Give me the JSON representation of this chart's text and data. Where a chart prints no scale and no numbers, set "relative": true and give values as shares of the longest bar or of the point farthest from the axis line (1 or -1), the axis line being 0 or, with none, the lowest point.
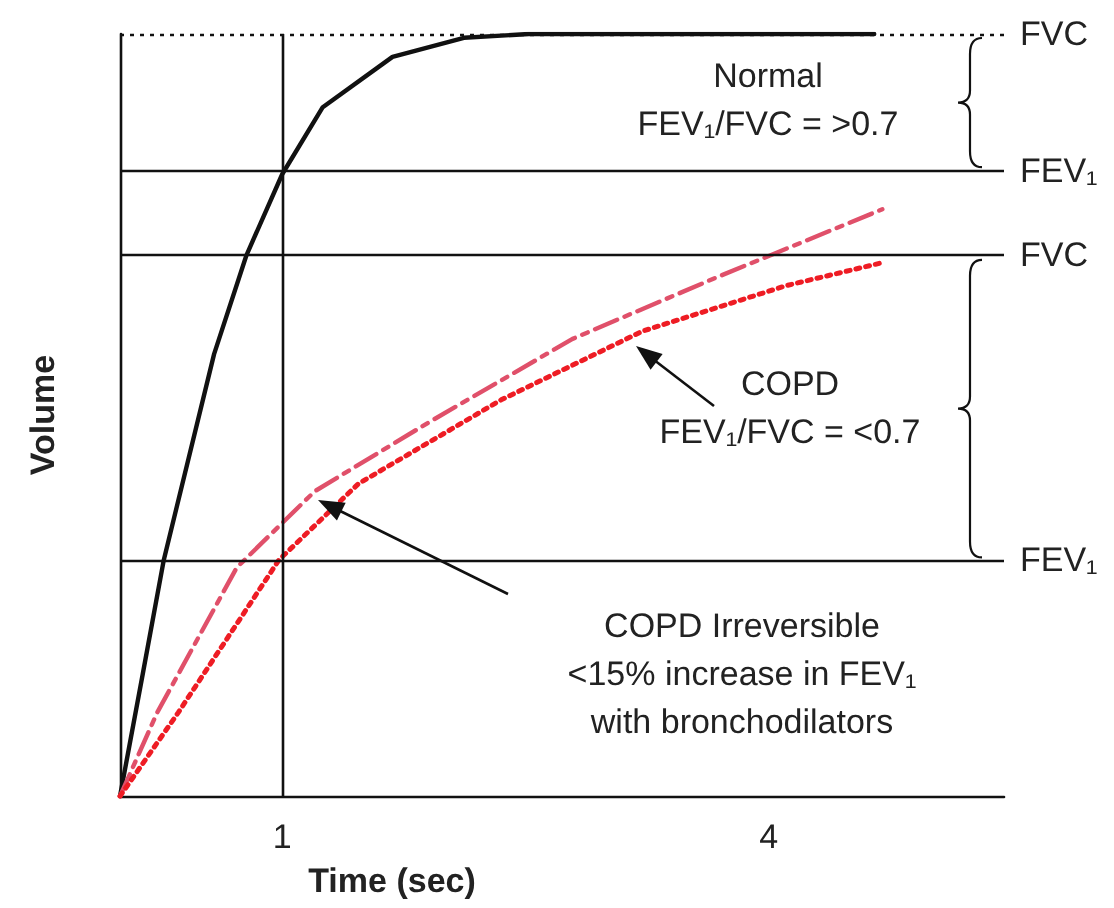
{
  "chart_data": {
    "type": "line",
    "xlabel": "Time (sec)",
    "ylabel": "Volume",
    "relative": true,
    "marker": "none",
    "x": [
      0,
      0.14,
      0.27,
      0.58,
      0.78,
      1.0,
      1.25,
      1.68,
      2.12,
      2.52,
      3.5,
      4.65
    ],
    "xlim": [
      0,
      5.45
    ],
    "xticks": [
      1,
      4
    ],
    "series": [
      {
        "color": "#111111",
        "line_style": "solid",
        "values": [
          0,
          0.16,
          0.31,
          0.58,
          0.71,
          0.816,
          0.904,
          0.97,
          0.995,
          1.0,
          1.0,
          1.0
        ]
      },
      {
        "color": "#e0506a",
        "line_style": "dashed",
        "x": [
          0,
          0.23,
          0.72,
          1.2,
          1.9,
          2.79,
          3.67,
          4.7
        ],
        "values": [
          0,
          0.11,
          0.3,
          0.4,
          0.49,
          0.6,
          0.68,
          0.77
        ]
      },
      {
        "color": "#ee1c24",
        "line_style": "dotted",
        "x": [
          0,
          0.36,
          0.98,
          1.47,
          2.35,
          3.22,
          4.11,
          4.7
        ],
        "values": [
          0,
          0.11,
          0.31,
          0.41,
          0.52,
          0.61,
          0.67,
          0.7
        ]
      }
    ],
    "ref_lines": [
      {
        "axis": "y",
        "value": 1.0,
        "label": "FVC",
        "line_style": "dotted"
      },
      {
        "axis": "y",
        "value": 0.82,
        "label": "FEV₁"
      },
      {
        "axis": "y",
        "value": 0.709,
        "label": "FVC"
      },
      {
        "axis": "y",
        "value": 0.308,
        "label": "FEV₁"
      },
      {
        "axis": "x",
        "value": 1
      }
    ],
    "annotations": [
      "Normal\nFEV₁/FVC = >0.7",
      "COPD\nFEV₁/FVC = <0.7",
      "COPD Irreversible\n<15% increase in FEV₁\nwith bronchodilators"
    ]
  }
}
